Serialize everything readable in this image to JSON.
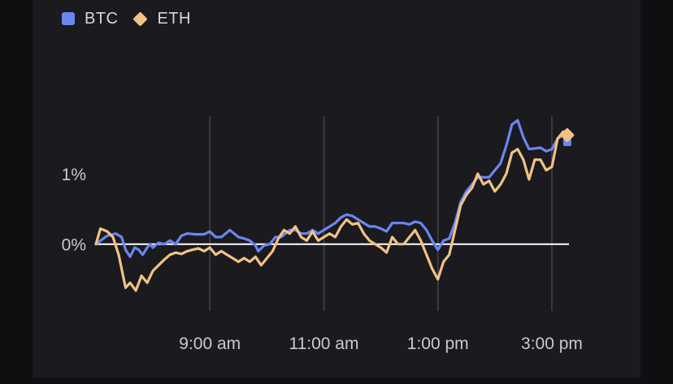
{
  "colors": {
    "btc": "#6b86ee",
    "eth": "#f1c283",
    "grid": "#44444b",
    "zero": "#ffffff"
  },
  "legend": {
    "btc_label": "BTC",
    "eth_label": "ETH"
  },
  "chart_data": {
    "type": "line",
    "title": "",
    "xlabel": "",
    "ylabel": "",
    "x_unit": "hours since 7:00 am",
    "xlim": [
      0,
      8.3
    ],
    "ylim": [
      -0.95,
      1.82
    ],
    "y_ticks": [
      {
        "value": 0,
        "label": "0%"
      },
      {
        "value": 1,
        "label": "1%"
      }
    ],
    "x_ticks": [
      {
        "value": 2,
        "label": "9:00 am"
      },
      {
        "value": 4,
        "label": "11:00 am"
      },
      {
        "value": 6,
        "label": "1:00 pm"
      },
      {
        "value": 8,
        "label": "3:00 pm"
      }
    ],
    "series": [
      {
        "name": "BTC",
        "marker": "square",
        "points": [
          [
            0.0,
            0.0
          ],
          [
            0.2,
            0.12
          ],
          [
            0.35,
            0.15
          ],
          [
            0.45,
            0.1
          ],
          [
            0.52,
            -0.08
          ],
          [
            0.6,
            -0.18
          ],
          [
            0.68,
            -0.05
          ],
          [
            0.75,
            -0.08
          ],
          [
            0.82,
            -0.15
          ],
          [
            0.9,
            -0.05
          ],
          [
            0.95,
            0.0
          ],
          [
            1.0,
            -0.05
          ],
          [
            1.1,
            0.02
          ],
          [
            1.2,
            0.0
          ],
          [
            1.3,
            0.05
          ],
          [
            1.4,
            0.0
          ],
          [
            1.5,
            0.12
          ],
          [
            1.6,
            0.15
          ],
          [
            1.75,
            0.14
          ],
          [
            1.9,
            0.14
          ],
          [
            2.0,
            0.18
          ],
          [
            2.1,
            0.1
          ],
          [
            2.2,
            0.1
          ],
          [
            2.35,
            0.2
          ],
          [
            2.5,
            0.1
          ],
          [
            2.6,
            0.08
          ],
          [
            2.7,
            0.05
          ],
          [
            2.8,
            -0.02
          ],
          [
            2.85,
            -0.1
          ],
          [
            2.95,
            -0.02
          ],
          [
            3.05,
            0.0
          ],
          [
            3.15,
            0.1
          ],
          [
            3.25,
            0.1
          ],
          [
            3.4,
            0.2
          ],
          [
            3.5,
            0.2
          ],
          [
            3.6,
            0.15
          ],
          [
            3.7,
            0.15
          ],
          [
            3.8,
            0.2
          ],
          [
            3.9,
            0.15
          ],
          [
            4.0,
            0.2
          ],
          [
            4.1,
            0.25
          ],
          [
            4.2,
            0.3
          ],
          [
            4.3,
            0.38
          ],
          [
            4.4,
            0.42
          ],
          [
            4.5,
            0.4
          ],
          [
            4.6,
            0.35
          ],
          [
            4.7,
            0.3
          ],
          [
            4.8,
            0.25
          ],
          [
            4.9,
            0.25
          ],
          [
            5.0,
            0.22
          ],
          [
            5.1,
            0.18
          ],
          [
            5.2,
            0.3
          ],
          [
            5.3,
            0.3
          ],
          [
            5.4,
            0.3
          ],
          [
            5.5,
            0.28
          ],
          [
            5.6,
            0.32
          ],
          [
            5.7,
            0.3
          ],
          [
            5.8,
            0.2
          ],
          [
            5.9,
            0.05
          ],
          [
            6.0,
            -0.08
          ],
          [
            6.1,
            0.05
          ],
          [
            6.2,
            0.08
          ],
          [
            6.3,
            0.3
          ],
          [
            6.4,
            0.6
          ],
          [
            6.5,
            0.75
          ],
          [
            6.6,
            0.85
          ],
          [
            6.7,
            0.95
          ],
          [
            6.8,
            0.95
          ],
          [
            6.9,
            0.95
          ],
          [
            7.0,
            1.05
          ],
          [
            7.1,
            1.15
          ],
          [
            7.2,
            1.4
          ],
          [
            7.3,
            1.7
          ],
          [
            7.4,
            1.76
          ],
          [
            7.5,
            1.52
          ],
          [
            7.6,
            1.35
          ],
          [
            7.7,
            1.36
          ],
          [
            7.8,
            1.37
          ],
          [
            7.9,
            1.32
          ],
          [
            8.0,
            1.35
          ],
          [
            8.1,
            1.5
          ],
          [
            8.2,
            1.55
          ],
          [
            8.27,
            1.45
          ]
        ]
      },
      {
        "name": "ETH",
        "marker": "diamond",
        "points": [
          [
            0.0,
            0.0
          ],
          [
            0.08,
            0.22
          ],
          [
            0.2,
            0.18
          ],
          [
            0.3,
            0.1
          ],
          [
            0.4,
            -0.15
          ],
          [
            0.45,
            -0.35
          ],
          [
            0.52,
            -0.62
          ],
          [
            0.6,
            -0.55
          ],
          [
            0.7,
            -0.66
          ],
          [
            0.8,
            -0.45
          ],
          [
            0.9,
            -0.55
          ],
          [
            1.0,
            -0.38
          ],
          [
            1.1,
            -0.3
          ],
          [
            1.2,
            -0.22
          ],
          [
            1.3,
            -0.15
          ],
          [
            1.4,
            -0.12
          ],
          [
            1.5,
            -0.14
          ],
          [
            1.6,
            -0.1
          ],
          [
            1.7,
            -0.08
          ],
          [
            1.8,
            -0.06
          ],
          [
            1.9,
            -0.1
          ],
          [
            2.0,
            -0.05
          ],
          [
            2.1,
            -0.15
          ],
          [
            2.2,
            -0.1
          ],
          [
            2.3,
            -0.15
          ],
          [
            2.4,
            -0.2
          ],
          [
            2.5,
            -0.25
          ],
          [
            2.6,
            -0.2
          ],
          [
            2.7,
            -0.25
          ],
          [
            2.8,
            -0.18
          ],
          [
            2.9,
            -0.3
          ],
          [
            3.0,
            -0.2
          ],
          [
            3.1,
            -0.1
          ],
          [
            3.2,
            0.08
          ],
          [
            3.3,
            0.2
          ],
          [
            3.4,
            0.15
          ],
          [
            3.5,
            0.25
          ],
          [
            3.6,
            0.1
          ],
          [
            3.7,
            0.05
          ],
          [
            3.8,
            0.18
          ],
          [
            3.9,
            0.05
          ],
          [
            4.0,
            0.1
          ],
          [
            4.1,
            0.15
          ],
          [
            4.2,
            0.1
          ],
          [
            4.3,
            0.25
          ],
          [
            4.4,
            0.35
          ],
          [
            4.5,
            0.28
          ],
          [
            4.6,
            0.3
          ],
          [
            4.7,
            0.15
          ],
          [
            4.8,
            0.05
          ],
          [
            4.9,
            0.0
          ],
          [
            5.0,
            -0.05
          ],
          [
            5.1,
            -0.12
          ],
          [
            5.2,
            0.1
          ],
          [
            5.3,
            0.0
          ],
          [
            5.4,
            0.0
          ],
          [
            5.5,
            0.1
          ],
          [
            5.6,
            0.2
          ],
          [
            5.7,
            0.05
          ],
          [
            5.8,
            -0.15
          ],
          [
            5.9,
            -0.35
          ],
          [
            6.0,
            -0.5
          ],
          [
            6.1,
            -0.25
          ],
          [
            6.2,
            -0.15
          ],
          [
            6.3,
            0.2
          ],
          [
            6.4,
            0.55
          ],
          [
            6.5,
            0.7
          ],
          [
            6.6,
            0.8
          ],
          [
            6.7,
            1.0
          ],
          [
            6.8,
            0.85
          ],
          [
            6.9,
            0.9
          ],
          [
            7.0,
            0.75
          ],
          [
            7.1,
            0.85
          ],
          [
            7.2,
            1.0
          ],
          [
            7.3,
            1.3
          ],
          [
            7.4,
            1.35
          ],
          [
            7.5,
            1.2
          ],
          [
            7.6,
            0.92
          ],
          [
            7.7,
            1.2
          ],
          [
            7.8,
            1.2
          ],
          [
            7.9,
            1.05
          ],
          [
            8.0,
            1.1
          ],
          [
            8.1,
            1.5
          ],
          [
            8.2,
            1.6
          ],
          [
            8.27,
            1.55
          ]
        ]
      }
    ]
  }
}
